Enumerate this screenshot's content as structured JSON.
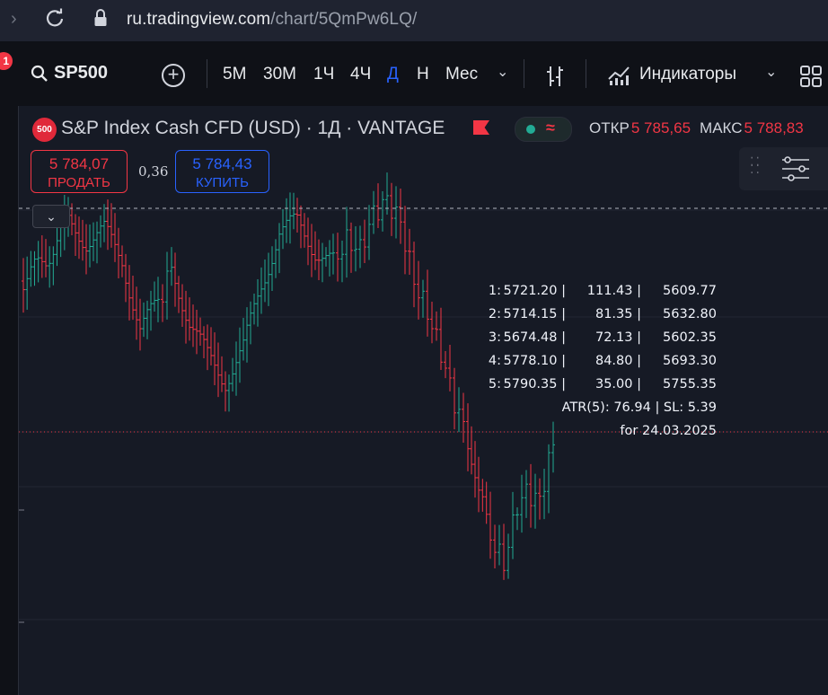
{
  "browser": {
    "url_domain": "ru.tradingview.com",
    "url_path": "/chart/5QmPw6LQ/"
  },
  "toolbar": {
    "notification_count": "1",
    "symbol": "SP500",
    "timeframes": [
      {
        "label": "5М",
        "active": false
      },
      {
        "label": "30М",
        "active": false
      },
      {
        "label": "1Ч",
        "active": false
      },
      {
        "label": "4Ч",
        "active": false
      },
      {
        "label": "Д",
        "active": true
      },
      {
        "label": "Н",
        "active": false
      },
      {
        "label": "Мес",
        "active": false
      }
    ],
    "indicators_label": "Индикаторы"
  },
  "legend": {
    "logo_text": "500",
    "title": "S&P Index Cash CFD (USD) · 1Д · VANTAGE",
    "open_label": "ОТКР",
    "open_value": "5 785,65",
    "high_label": "МАКС",
    "high_value": "5 788,83"
  },
  "trade": {
    "sell_price": "5 784,07",
    "sell_label": "ПРОДАТЬ",
    "spread": "0,36",
    "buy_price": "5 784,43",
    "buy_label": "КУПИТЬ"
  },
  "atr_table": {
    "rows": [
      [
        "1:",
        "5721.20 |",
        "111.43 |",
        "5609.77"
      ],
      [
        "2:",
        "5714.15 |",
        "81.35 |",
        "5632.80"
      ],
      [
        "3:",
        "5674.48 |",
        "72.13 |",
        "5602.35"
      ],
      [
        "4:",
        "5778.10 |",
        "84.80 |",
        "5693.30"
      ],
      [
        "5:",
        "5790.35 |",
        "35.00 |",
        "5755.35"
      ]
    ],
    "summary": "ATR(5): 76.94 | SL: 5.39",
    "date_line": "for 24.03.2025"
  },
  "colors": {
    "up": "#22ab94",
    "down": "#f23645",
    "accent": "#2962ff",
    "background": "#161a25"
  }
}
